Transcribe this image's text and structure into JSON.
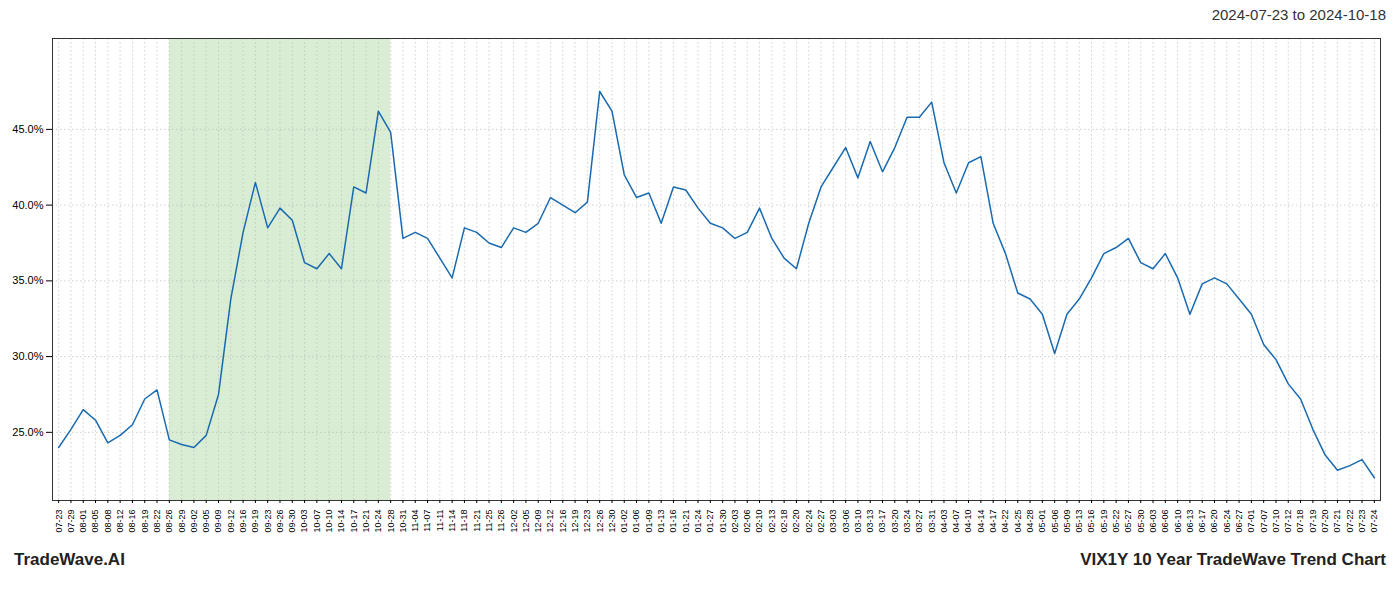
{
  "chart_data": {
    "type": "line",
    "title": "2024-07-23 to 2024-10-18",
    "annotations": [
      "TradeWave.AI",
      "VIX1Y 10 Year TradeWave Trend Chart"
    ],
    "color": "#1a6ab0",
    "grid": true,
    "ylim": [
      20.5,
      51.0
    ],
    "yticks": [
      {
        "value": 25.0,
        "label": "25.0%"
      },
      {
        "value": 30.0,
        "label": "30.0%"
      },
      {
        "value": 35.0,
        "label": "35.0%"
      },
      {
        "value": 40.0,
        "label": "40.0%"
      },
      {
        "value": 45.0,
        "label": "45.0%"
      }
    ],
    "highlight": {
      "start": "08-26",
      "end": "10-28",
      "color": "#d8edd4"
    },
    "categories": [
      "07-23",
      "07-29",
      "08-01",
      "08-05",
      "08-08",
      "08-12",
      "08-16",
      "08-19",
      "08-22",
      "08-26",
      "08-29",
      "09-02",
      "09-05",
      "09-09",
      "09-12",
      "09-16",
      "09-19",
      "09-23",
      "09-26",
      "09-30",
      "10-03",
      "10-07",
      "10-10",
      "10-14",
      "10-17",
      "10-21",
      "10-24",
      "10-28",
      "10-31",
      "11-04",
      "11-07",
      "11-11",
      "11-14",
      "11-18",
      "11-21",
      "11-25",
      "11-26",
      "12-02",
      "12-05",
      "12-09",
      "12-12",
      "12-16",
      "12-19",
      "12-23",
      "12-26",
      "12-30",
      "01-02",
      "01-06",
      "01-09",
      "01-13",
      "01-16",
      "01-21",
      "01-24",
      "01-27",
      "01-30",
      "02-03",
      "02-06",
      "02-10",
      "02-13",
      "02-18",
      "02-20",
      "02-24",
      "02-27",
      "03-03",
      "03-06",
      "03-10",
      "03-13",
      "03-17",
      "03-20",
      "03-24",
      "03-27",
      "03-31",
      "04-03",
      "04-07",
      "04-10",
      "04-14",
      "04-17",
      "04-22",
      "04-25",
      "04-28",
      "05-01",
      "05-06",
      "05-09",
      "05-13",
      "05-16",
      "05-19",
      "05-22",
      "05-27",
      "05-30",
      "06-03",
      "06-06",
      "06-10",
      "06-13",
      "06-17",
      "06-20",
      "06-24",
      "06-27",
      "07-01",
      "07-07",
      "07-10",
      "07-12",
      "07-18",
      "07-19",
      "07-20",
      "07-21",
      "07-22",
      "07-23",
      "07-24"
    ],
    "values": [
      24.0,
      25.2,
      26.5,
      25.8,
      24.3,
      24.8,
      25.5,
      27.2,
      27.8,
      24.5,
      24.2,
      24.0,
      24.8,
      27.5,
      33.8,
      38.2,
      41.5,
      38.5,
      39.8,
      39.0,
      36.2,
      35.8,
      36.8,
      35.8,
      41.2,
      40.8,
      46.2,
      44.8,
      37.8,
      38.2,
      37.8,
      36.5,
      35.2,
      38.5,
      38.2,
      37.5,
      37.2,
      38.5,
      38.2,
      38.8,
      40.5,
      40.0,
      39.5,
      40.2,
      47.5,
      46.2,
      42.0,
      40.5,
      40.8,
      38.8,
      41.2,
      41.0,
      39.8,
      38.8,
      38.5,
      37.8,
      38.2,
      39.8,
      37.8,
      36.5,
      35.8,
      38.8,
      41.2,
      42.5,
      43.8,
      41.8,
      44.2,
      42.2,
      43.8,
      45.8,
      45.8,
      46.8,
      42.8,
      40.8,
      42.8,
      43.2,
      38.8,
      36.8,
      34.2,
      33.8,
      32.8,
      30.2,
      32.8,
      33.8,
      35.2,
      36.8,
      37.2,
      37.8,
      36.2,
      35.8,
      36.8,
      35.2,
      32.8,
      34.8,
      35.2,
      34.8,
      33.8,
      32.8,
      30.8,
      29.8,
      28.2,
      27.2,
      25.2,
      23.5,
      22.5,
      22.8,
      23.2,
      22.0
    ]
  }
}
